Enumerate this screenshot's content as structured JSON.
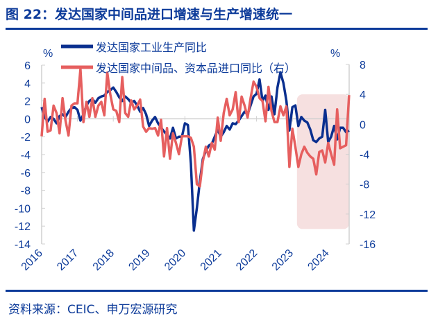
{
  "title": "图 22：发达国家中间品进口增速与生产增速统一",
  "source": "资料来源：CEIC、申万宏源研究",
  "chart_data": {
    "type": "line",
    "title": "",
    "x_start": "2016-01",
    "x_end": "2024-08",
    "x_frequency": "monthly",
    "x_tick_labels": [
      "2016",
      "2017",
      "2018",
      "2019",
      "2020",
      "2021",
      "2022",
      "2023",
      "2024"
    ],
    "left_axis": {
      "unit": "%",
      "ylim": [
        -14,
        6
      ],
      "ticks": [
        6,
        4,
        2,
        0,
        -2,
        -4,
        -6,
        -8,
        -10,
        -12,
        -14
      ]
    },
    "right_axis": {
      "unit": "%",
      "ylim": [
        -16,
        8
      ],
      "ticks": [
        8,
        4,
        0,
        -4,
        -8,
        -12,
        -16
      ]
    },
    "grid": false,
    "legend_placement": "top",
    "highlight_region": {
      "from": "2023-03",
      "to": "2024-08",
      "right_axis_range": [
        -14,
        4
      ],
      "color": "#f6e0e0"
    },
    "series": [
      {
        "name": "发达国家工业生产同比",
        "axis": "left",
        "color": "#0a2f8f",
        "values": [
          1.3,
          0.2,
          -0.3,
          0.2,
          0,
          -0.5,
          0.3,
          0.5,
          0.2,
          0.8,
          1.2,
          1.3,
          1.0,
          -0.2,
          0.5,
          1.5,
          2.0,
          2.2,
          1.8,
          2.3,
          2.5,
          2.6,
          3.0,
          3.2,
          3.5,
          3.0,
          2.4,
          2.0,
          2.5,
          2.2,
          1.8,
          2.0,
          1.5,
          0.8,
          1.2,
          0.5,
          -0.8,
          -0.2,
          0.2,
          -0.5,
          -1.0,
          -1.4,
          -1.8,
          -2.2,
          -1.0,
          -2.2,
          -2.0,
          -2.0,
          -0.5,
          -0.7,
          -5.0,
          -12.5,
          -10.0,
          -7.0,
          -4.5,
          -3.6,
          -3.0,
          -2.8,
          -2.0,
          -1.2,
          -2.0,
          -1.5,
          -0.8,
          -1.2,
          -0.5,
          -0.6,
          -0.2,
          0.3,
          0.8,
          0.5,
          1.5,
          2.5,
          2.8,
          4.4,
          2.0,
          2.6,
          1.0,
          2.5,
          0.5,
          3.5,
          5.2,
          4.0,
          2.0,
          -1.3,
          1.3,
          1.5,
          -0.8,
          0.2,
          -0.2,
          -0.4,
          -1.2,
          -2.4,
          -2.6,
          -2.2,
          -2.0,
          1.0,
          -2.6,
          -2.0,
          -0.8,
          -2.3,
          -1.0,
          -1.0,
          -1.5,
          -1.3
        ]
      },
      {
        "name": "发达国家中间品、资本品进口同比（右）",
        "axis": "right",
        "color": "#e65f5f",
        "values": [
          -1.6,
          3.4,
          -1.0,
          -0.8,
          2.5,
          1.5,
          -1.2,
          3.5,
          0.5,
          -1.5,
          2.5,
          2.8,
          2.8,
          7.4,
          0.3,
          3.0,
          1.0,
          3.5,
          1.0,
          2.5,
          3.0,
          1.2,
          6.9,
          4.0,
          2.0,
          1.8,
          0.3,
          6.3,
          1.5,
          1.0,
          3.2,
          2.0,
          2.5,
          3.3,
          -0.3,
          -1.0,
          -0.5,
          -0.6,
          -0.5,
          -1.5,
          0.6,
          -4.3,
          -0.5,
          -4.6,
          -1.2,
          -2.5,
          -4.0,
          -1.6,
          -1.6,
          -1.6,
          -1.8,
          -3.0,
          -8.0,
          -8.3,
          -5.0,
          -3.0,
          -4.3,
          -2.5,
          -3.4,
          0.9,
          -2.2,
          1.5,
          3.4,
          1.2,
          2.0,
          4.3,
          0.3,
          3.7,
          2.5,
          0.9,
          3.5,
          5.7,
          5.0,
          3.5,
          3.1,
          0.4,
          5.0,
          1.8,
          0.3,
          0.3,
          2.4,
          1.2,
          2.4,
          -5.7,
          -0.6,
          -3.0,
          -5.7,
          -4.0,
          -3.0,
          -3.8,
          -4.3,
          -4.6,
          -6.7,
          -3.7,
          -3.5,
          -5.1,
          -2.5,
          -4.0,
          -5.4,
          2.0,
          -3.2,
          -3.0,
          -2.8,
          3.9
        ]
      }
    ]
  }
}
